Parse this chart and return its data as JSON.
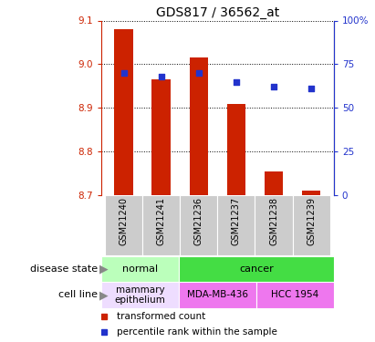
{
  "title": "GDS817 / 36562_at",
  "samples": [
    "GSM21240",
    "GSM21241",
    "GSM21236",
    "GSM21237",
    "GSM21238",
    "GSM21239"
  ],
  "transformed_counts": [
    9.08,
    8.965,
    9.015,
    8.91,
    8.755,
    8.71
  ],
  "percentile_ranks": [
    70,
    68,
    70,
    65,
    62,
    61
  ],
  "ylim_left": [
    8.7,
    9.1
  ],
  "ylim_right": [
    0,
    100
  ],
  "yticks_left": [
    8.7,
    8.8,
    8.9,
    9.0,
    9.1
  ],
  "yticks_right": [
    0,
    25,
    50,
    75,
    100
  ],
  "bar_color": "#cc2200",
  "marker_color": "#2233cc",
  "bar_width": 0.5,
  "disease_state_groups": [
    {
      "label": "normal",
      "span": [
        0,
        2
      ],
      "color": "#bbffbb"
    },
    {
      "label": "cancer",
      "span": [
        2,
        6
      ],
      "color": "#44dd44"
    }
  ],
  "cell_line_groups": [
    {
      "label": "mammary\nepithelium",
      "span": [
        0,
        2
      ],
      "color": "#eeddff"
    },
    {
      "label": "MDA-MB-436",
      "span": [
        2,
        4
      ],
      "color": "#ee77ee"
    },
    {
      "label": "HCC 1954",
      "span": [
        4,
        6
      ],
      "color": "#ee77ee"
    }
  ],
  "legend_items": [
    {
      "label": "transformed count",
      "color": "#cc2200"
    },
    {
      "label": "percentile rank within the sample",
      "color": "#2233cc"
    }
  ],
  "left_axis_color": "#cc2200",
  "right_axis_color": "#2233cc",
  "xtick_bg_color": "#cccccc",
  "title_fontsize": 10,
  "tick_fontsize": 7.5,
  "annot_fontsize": 8,
  "sample_fontsize": 7,
  "legend_fontsize": 7.5,
  "row_label_fontsize": 8
}
